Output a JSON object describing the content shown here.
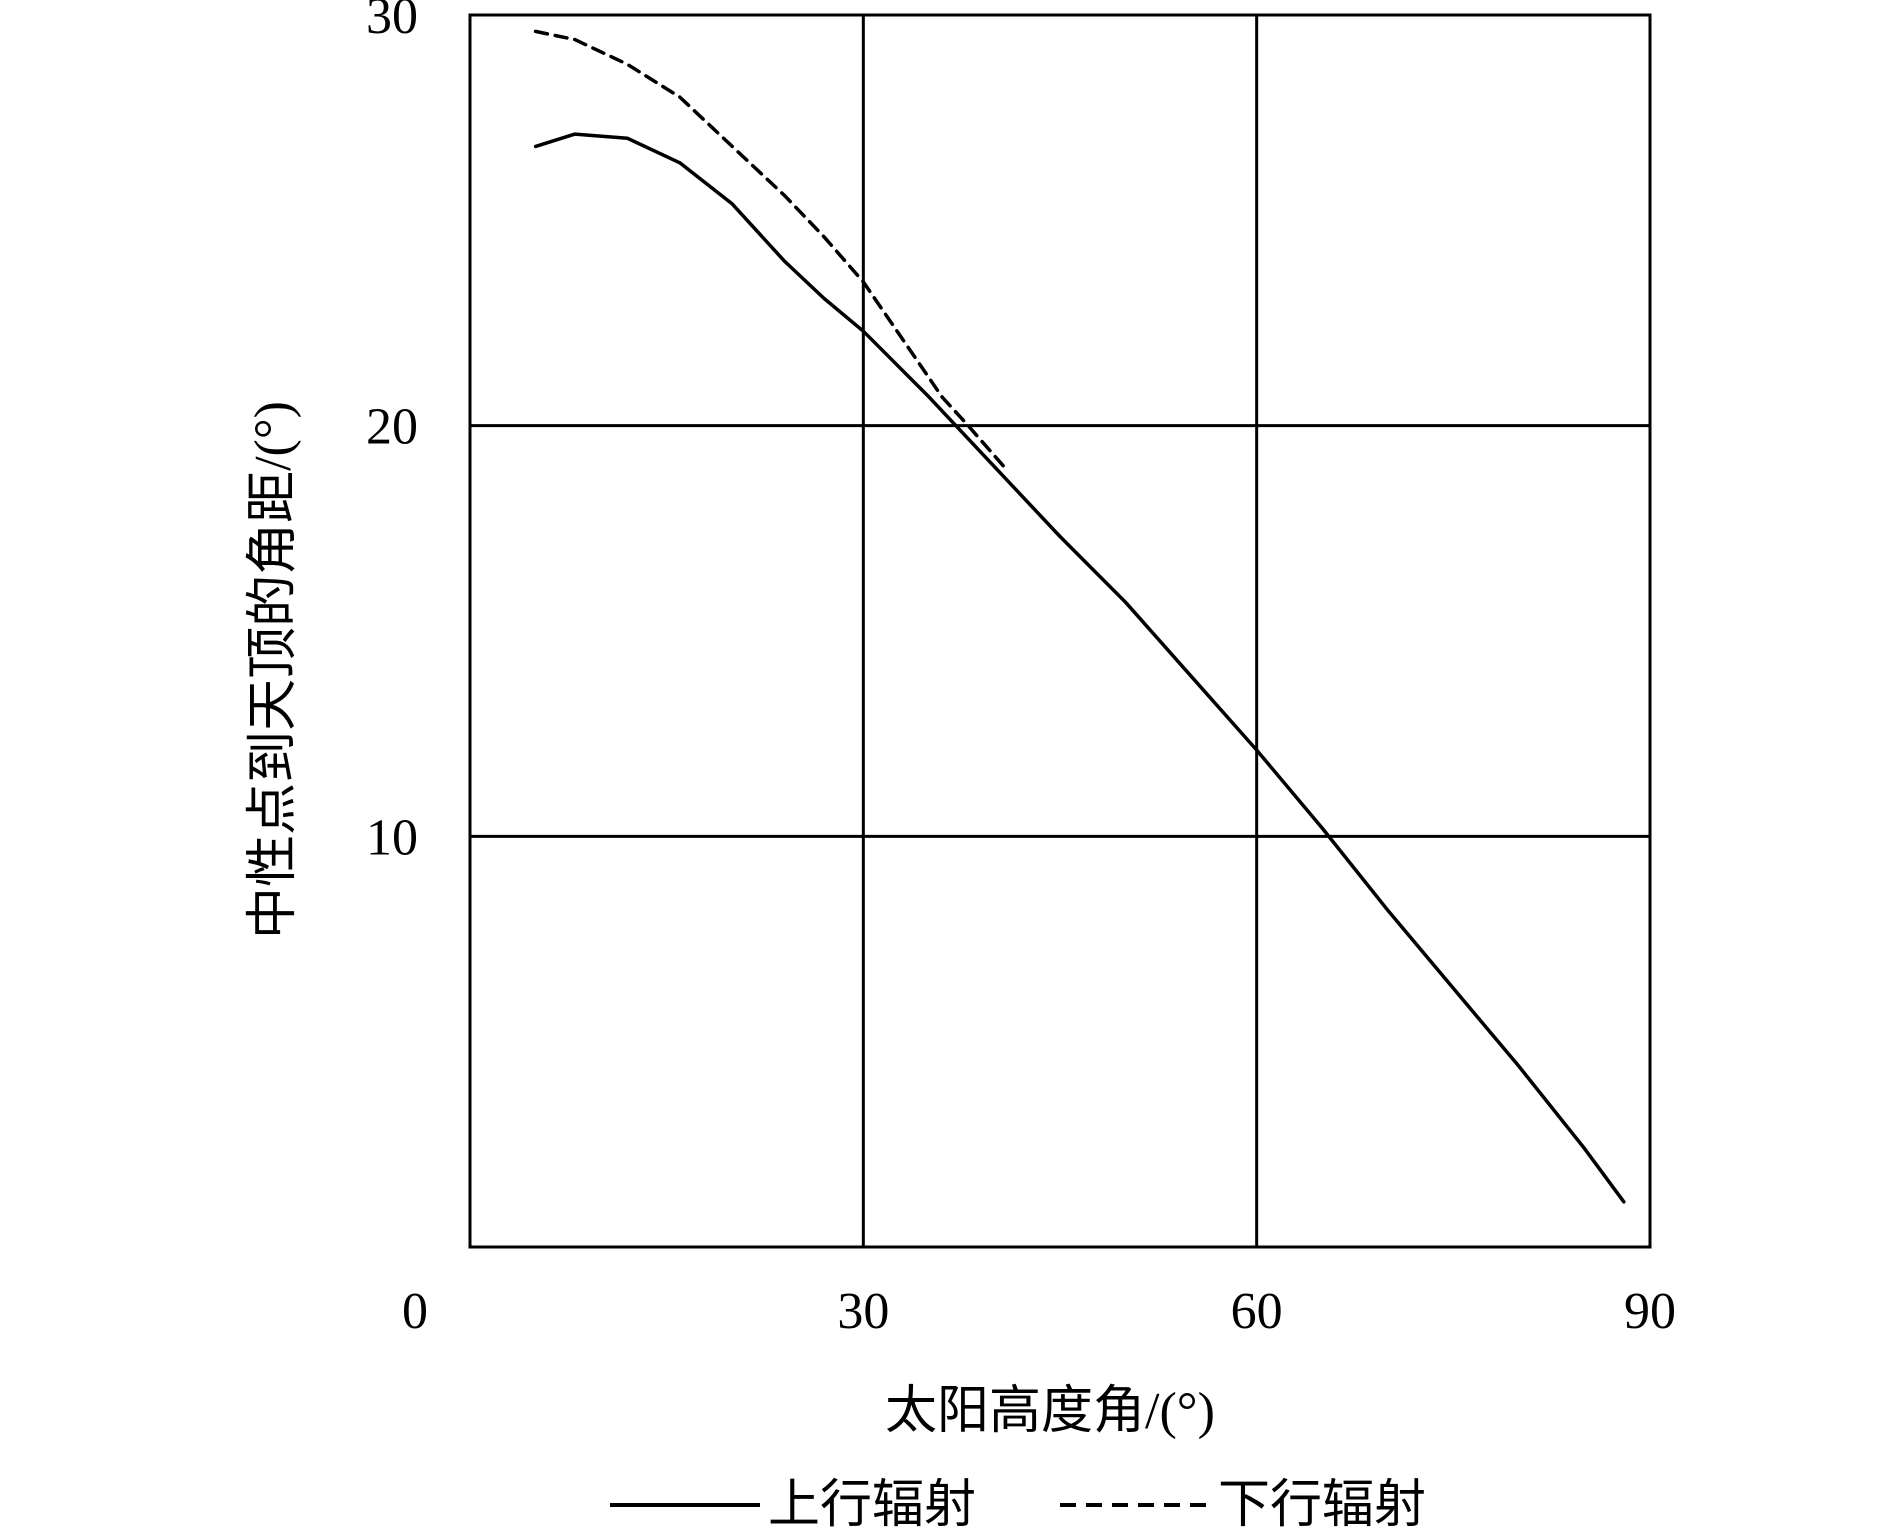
{
  "chart_data": {
    "type": "line",
    "title": "",
    "xlabel": "太阳高度角/(°)",
    "ylabel": "中性点到天顶的角距/(°)",
    "xlim": [
      0,
      90
    ],
    "ylim": [
      0,
      30
    ],
    "x_ticks": [
      0,
      30,
      60,
      90
    ],
    "y_ticks": [
      10,
      20,
      30
    ],
    "grid": true,
    "legend_position": "bottom",
    "series": [
      {
        "name": "上行辐射",
        "style": "solid",
        "color": "#000000",
        "points": [
          [
            5,
            26.8
          ],
          [
            8,
            27.1
          ],
          [
            12,
            27.0
          ],
          [
            16,
            26.4
          ],
          [
            20,
            25.4
          ],
          [
            24,
            24.0
          ],
          [
            27,
            23.1
          ],
          [
            30,
            22.3
          ],
          [
            35,
            20.7
          ],
          [
            40,
            19.0
          ],
          [
            45,
            17.3
          ],
          [
            50,
            15.7
          ],
          [
            55,
            13.9
          ],
          [
            60,
            12.1
          ],
          [
            65,
            10.2
          ],
          [
            70,
            8.2
          ],
          [
            75,
            6.3
          ],
          [
            80,
            4.4
          ],
          [
            85,
            2.4
          ],
          [
            88,
            1.1
          ]
        ]
      },
      {
        "name": "下行辐射",
        "style": "dashed",
        "color": "#000000",
        "points": [
          [
            5,
            29.6
          ],
          [
            8,
            29.4
          ],
          [
            12,
            28.8
          ],
          [
            16,
            28.0
          ],
          [
            20,
            26.8
          ],
          [
            24,
            25.6
          ],
          [
            27,
            24.6
          ],
          [
            30,
            23.5
          ],
          [
            33,
            22.1
          ],
          [
            36,
            20.7
          ],
          [
            38,
            20.0
          ],
          [
            41,
            18.9
          ]
        ]
      }
    ]
  }
}
